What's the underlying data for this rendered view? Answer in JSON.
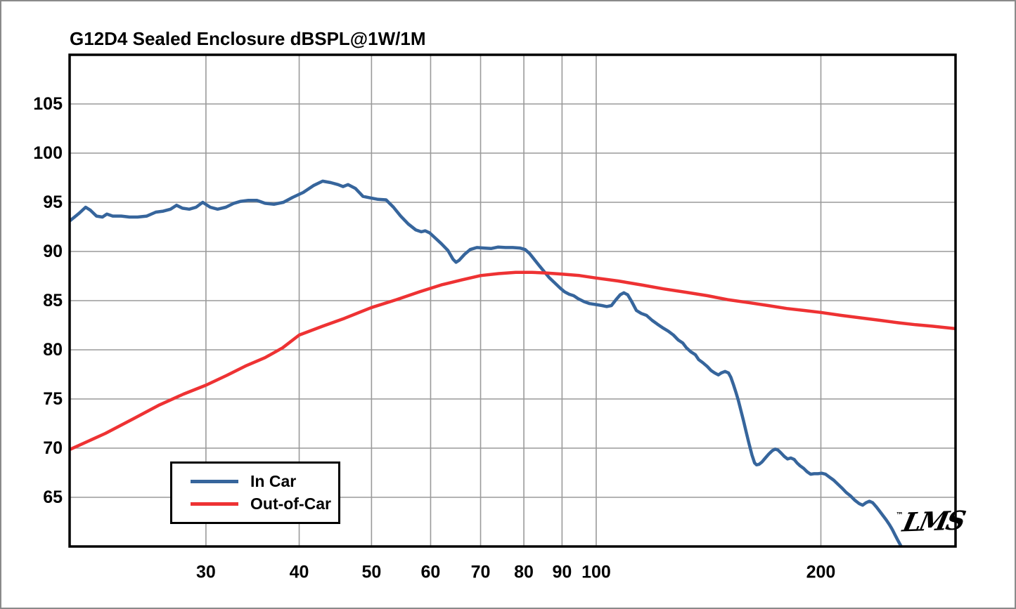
{
  "chart_data": {
    "type": "line",
    "title": "G12D4 Sealed Enclosure dBSPL@1W/1M",
    "xlabel": "",
    "ylabel": "",
    "x_axis": {
      "scale": "log",
      "xlim": [
        19.7,
        303
      ],
      "ticks": [
        30,
        40,
        50,
        60,
        70,
        80,
        90,
        100,
        200
      ],
      "tick_labels": [
        "30",
        "40",
        "50",
        "60",
        "70",
        "80",
        "90",
        "100",
        "200"
      ]
    },
    "y_axis": {
      "scale": "linear",
      "ylim": [
        60,
        110
      ],
      "ticks": [
        65,
        70,
        75,
        80,
        85,
        90,
        95,
        100,
        105
      ],
      "tick_labels": [
        "65",
        "70",
        "75",
        "80",
        "85",
        "90",
        "95",
        "100",
        "105"
      ]
    },
    "grid": true,
    "grid_color": "#9a9a9a",
    "axis_color": "#000000",
    "legend": {
      "position": "bottom-left",
      "entries": [
        {
          "label": "In Car",
          "color": "#36659C"
        },
        {
          "label": "Out-of-Car",
          "color": "#EE3233"
        }
      ]
    },
    "watermark": {
      "tm": "™",
      "text": "LMS"
    },
    "series": [
      {
        "name": "In Car",
        "color": "#36659C",
        "width": 4.5,
        "points": [
          [
            19.7,
            93.1
          ],
          [
            20.0,
            93.5
          ],
          [
            20.3,
            93.9
          ],
          [
            20.7,
            94.5
          ],
          [
            21.0,
            94.2
          ],
          [
            21.4,
            93.6
          ],
          [
            21.8,
            93.5
          ],
          [
            22.1,
            93.8
          ],
          [
            22.5,
            93.6
          ],
          [
            23.1,
            93.6
          ],
          [
            23.7,
            93.5
          ],
          [
            24.3,
            93.5
          ],
          [
            25.0,
            93.6
          ],
          [
            25.7,
            94.0
          ],
          [
            26.3,
            94.1
          ],
          [
            26.9,
            94.3
          ],
          [
            27.4,
            94.7
          ],
          [
            27.9,
            94.4
          ],
          [
            28.5,
            94.3
          ],
          [
            29.1,
            94.5
          ],
          [
            29.7,
            95.0
          ],
          [
            30.4,
            94.5
          ],
          [
            31.1,
            94.3
          ],
          [
            31.9,
            94.5
          ],
          [
            32.7,
            94.9
          ],
          [
            33.4,
            95.1
          ],
          [
            34.2,
            95.2
          ],
          [
            35.1,
            95.2
          ],
          [
            36.0,
            94.9
          ],
          [
            37.0,
            94.8
          ],
          [
            38.1,
            95.0
          ],
          [
            39.2,
            95.5
          ],
          [
            40.5,
            96.0
          ],
          [
            41.8,
            96.7
          ],
          [
            43.0,
            97.15
          ],
          [
            44.1,
            97.0
          ],
          [
            45.1,
            96.8
          ],
          [
            45.8,
            96.6
          ],
          [
            46.5,
            96.8
          ],
          [
            47.6,
            96.4
          ],
          [
            48.7,
            95.6
          ],
          [
            49.8,
            95.45
          ],
          [
            51.0,
            95.3
          ],
          [
            52.3,
            95.25
          ],
          [
            53.5,
            94.5
          ],
          [
            54.7,
            93.6
          ],
          [
            56.0,
            92.8
          ],
          [
            57.3,
            92.2
          ],
          [
            58.3,
            92.0
          ],
          [
            59.0,
            92.1
          ],
          [
            59.8,
            91.9
          ],
          [
            60.8,
            91.4
          ],
          [
            62.0,
            90.8
          ],
          [
            63.3,
            90.1
          ],
          [
            64.3,
            89.2
          ],
          [
            64.9,
            88.9
          ],
          [
            65.5,
            89.1
          ],
          [
            66.6,
            89.7
          ],
          [
            67.8,
            90.2
          ],
          [
            69.2,
            90.4
          ],
          [
            70.7,
            90.35
          ],
          [
            72.3,
            90.3
          ],
          [
            73.9,
            90.45
          ],
          [
            75.6,
            90.4
          ],
          [
            77.3,
            90.4
          ],
          [
            79.0,
            90.35
          ],
          [
            80.3,
            90.2
          ],
          [
            81.4,
            89.8
          ],
          [
            82.6,
            89.2
          ],
          [
            84.0,
            88.5
          ],
          [
            85.3,
            87.9
          ],
          [
            86.6,
            87.3
          ],
          [
            88.0,
            86.8
          ],
          [
            89.4,
            86.3
          ],
          [
            90.7,
            85.9
          ],
          [
            92.0,
            85.65
          ],
          [
            93.3,
            85.5
          ],
          [
            94.6,
            85.2
          ],
          [
            96.3,
            84.9
          ],
          [
            98.0,
            84.7
          ],
          [
            100.0,
            84.6
          ],
          [
            101.8,
            84.5
          ],
          [
            103.3,
            84.4
          ],
          [
            104.8,
            84.5
          ],
          [
            106.3,
            85.1
          ],
          [
            107.7,
            85.6
          ],
          [
            108.9,
            85.8
          ],
          [
            110.2,
            85.6
          ],
          [
            111.6,
            84.9
          ],
          [
            113.2,
            84.0
          ],
          [
            114.9,
            83.7
          ],
          [
            116.8,
            83.5
          ],
          [
            118.8,
            83.0
          ],
          [
            120.8,
            82.6
          ],
          [
            123.0,
            82.2
          ],
          [
            124.9,
            81.9
          ],
          [
            126.9,
            81.5
          ],
          [
            128.8,
            81.0
          ],
          [
            130.6,
            80.7
          ],
          [
            132.1,
            80.2
          ],
          [
            133.9,
            79.8
          ],
          [
            135.8,
            79.5
          ],
          [
            137.2,
            79.0
          ],
          [
            138.9,
            78.7
          ],
          [
            140.9,
            78.3
          ],
          [
            142.5,
            77.9
          ],
          [
            144.1,
            77.65
          ],
          [
            145.8,
            77.45
          ],
          [
            147.1,
            77.65
          ],
          [
            148.8,
            77.8
          ],
          [
            150.4,
            77.65
          ],
          [
            151.5,
            77.2
          ],
          [
            152.8,
            76.4
          ],
          [
            154.0,
            75.6
          ],
          [
            155.1,
            74.8
          ],
          [
            156.2,
            73.9
          ],
          [
            157.5,
            72.8
          ],
          [
            158.9,
            71.6
          ],
          [
            160.3,
            70.4
          ],
          [
            161.7,
            69.3
          ],
          [
            163.0,
            68.5
          ],
          [
            164.0,
            68.3
          ],
          [
            165.2,
            68.35
          ],
          [
            166.8,
            68.6
          ],
          [
            168.5,
            69.0
          ],
          [
            170.3,
            69.4
          ],
          [
            172.2,
            69.75
          ],
          [
            173.7,
            69.9
          ],
          [
            175.2,
            69.8
          ],
          [
            176.9,
            69.5
          ],
          [
            178.7,
            69.15
          ],
          [
            180.5,
            68.9
          ],
          [
            182.3,
            69.0
          ],
          [
            184.2,
            68.85
          ],
          [
            185.8,
            68.5
          ],
          [
            187.6,
            68.2
          ],
          [
            189.6,
            67.95
          ],
          [
            191.7,
            67.6
          ],
          [
            193.8,
            67.35
          ],
          [
            195.9,
            67.4
          ],
          [
            198.2,
            67.4
          ],
          [
            200.5,
            67.45
          ],
          [
            202.9,
            67.35
          ],
          [
            205.4,
            67.05
          ],
          [
            208.0,
            66.75
          ],
          [
            210.7,
            66.35
          ],
          [
            213.4,
            65.95
          ],
          [
            216.2,
            65.5
          ],
          [
            219.1,
            65.15
          ],
          [
            222.1,
            64.7
          ],
          [
            225.2,
            64.35
          ],
          [
            227.5,
            64.2
          ],
          [
            229.9,
            64.45
          ],
          [
            232.3,
            64.6
          ],
          [
            234.7,
            64.45
          ],
          [
            237.2,
            64.05
          ],
          [
            239.7,
            63.6
          ],
          [
            242.2,
            63.15
          ],
          [
            244.7,
            62.7
          ],
          [
            247.2,
            62.2
          ],
          [
            249.4,
            61.7
          ],
          [
            251.3,
            61.2
          ],
          [
            253.3,
            60.7
          ],
          [
            255.4,
            60.2
          ],
          [
            256.9,
            59.85
          ]
        ]
      },
      {
        "name": "Out-of-Car",
        "color": "#EE3233",
        "width": 4.5,
        "points": [
          [
            19.7,
            69.85
          ],
          [
            22,
            71.5
          ],
          [
            24,
            73.0
          ],
          [
            26,
            74.4
          ],
          [
            28,
            75.5
          ],
          [
            30,
            76.4
          ],
          [
            32,
            77.4
          ],
          [
            34,
            78.4
          ],
          [
            36,
            79.2
          ],
          [
            38,
            80.2
          ],
          [
            40,
            81.5
          ],
          [
            43,
            82.4
          ],
          [
            46,
            83.2
          ],
          [
            50,
            84.3
          ],
          [
            54,
            85.1
          ],
          [
            58,
            85.9
          ],
          [
            62,
            86.6
          ],
          [
            66,
            87.1
          ],
          [
            70,
            87.55
          ],
          [
            74,
            87.75
          ],
          [
            78,
            87.88
          ],
          [
            82,
            87.88
          ],
          [
            86,
            87.8
          ],
          [
            90,
            87.7
          ],
          [
            95,
            87.55
          ],
          [
            100,
            87.3
          ],
          [
            107,
            87.0
          ],
          [
            115,
            86.6
          ],
          [
            123,
            86.2
          ],
          [
            132,
            85.85
          ],
          [
            141,
            85.5
          ],
          [
            150,
            85.1
          ],
          [
            160,
            84.8
          ],
          [
            170,
            84.5
          ],
          [
            180,
            84.2
          ],
          [
            190,
            84.0
          ],
          [
            200,
            83.8
          ],
          [
            213,
            83.5
          ],
          [
            226,
            83.25
          ],
          [
            240,
            83.0
          ],
          [
            254,
            82.75
          ],
          [
            268,
            82.55
          ],
          [
            282,
            82.4
          ],
          [
            303,
            82.15
          ]
        ]
      }
    ]
  }
}
